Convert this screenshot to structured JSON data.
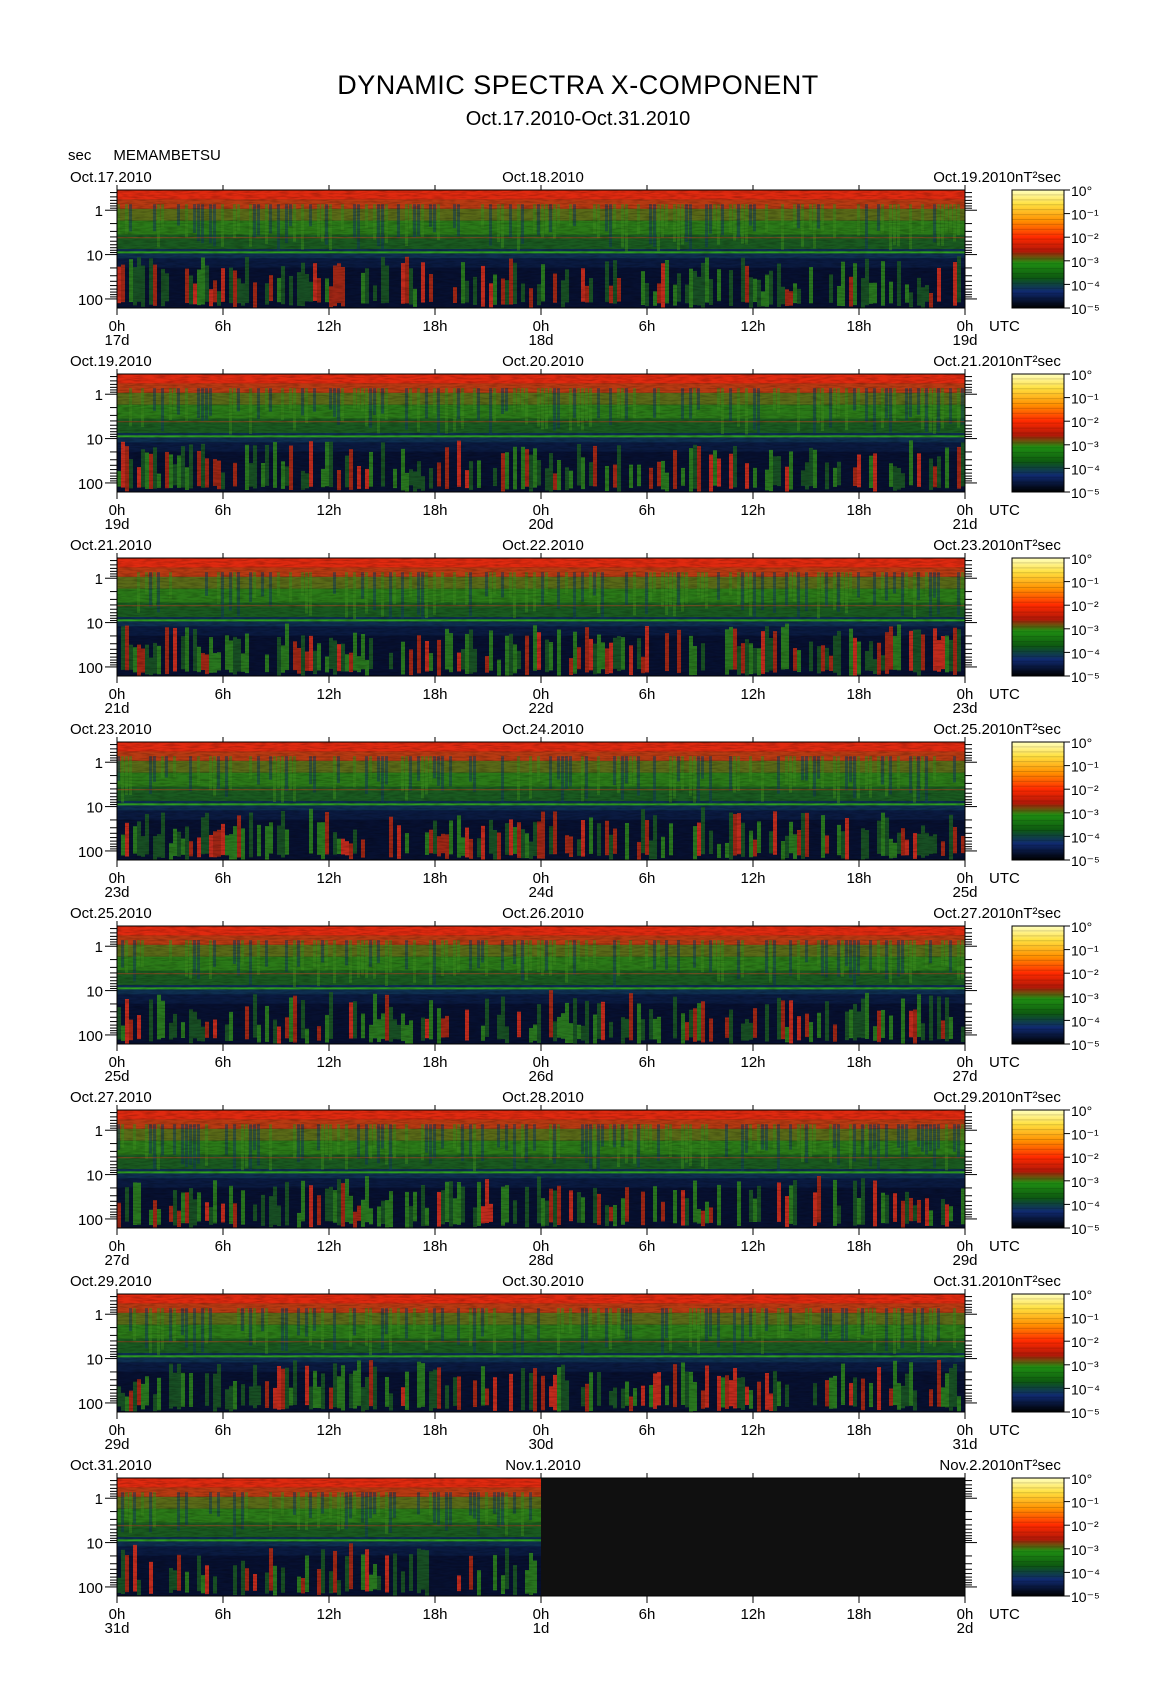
{
  "header": {
    "title": "DYNAMIC SPECTRA X-COMPONENT",
    "subtitle": "Oct.17.2010-Oct.31.2010",
    "unit_label": "sec",
    "station": "MEMAMBETSU"
  },
  "colorbar": {
    "unit": "nT²sec",
    "tick_labels": [
      "10°",
      "10⁻¹",
      "10⁻²",
      "10⁻³",
      "10⁻⁴",
      "10⁻⁵"
    ],
    "colors": [
      "#ffffb0",
      "#ffd000",
      "#ff3000",
      "#c81810",
      "#1e8c14",
      "#0a2a66",
      "#000000"
    ]
  },
  "x_tick_labels": [
    "0h",
    "6h",
    "12h",
    "18h",
    "0h",
    "6h",
    "12h",
    "18h",
    "0h"
  ],
  "x_unit": "UTC",
  "panels": [
    {
      "date_left": "Oct.17.2010",
      "date_mid": "Oct.18.2010",
      "date_right": "Oct.19.2010",
      "day_left": "17d",
      "day_mid": "18d",
      "day_right": "19d"
    },
    {
      "date_left": "Oct.19.2010",
      "date_mid": "Oct.20.2010",
      "date_right": "Oct.21.2010",
      "day_left": "19d",
      "day_mid": "20d",
      "day_right": "21d"
    },
    {
      "date_left": "Oct.21.2010",
      "date_mid": "Oct.22.2010",
      "date_right": "Oct.23.2010",
      "day_left": "21d",
      "day_mid": "22d",
      "day_right": "23d"
    },
    {
      "date_left": "Oct.23.2010",
      "date_mid": "Oct.24.2010",
      "date_right": "Oct.25.2010",
      "day_left": "23d",
      "day_mid": "24d",
      "day_right": "25d"
    },
    {
      "date_left": "Oct.25.2010",
      "date_mid": "Oct.26.2010",
      "date_right": "Oct.27.2010",
      "day_left": "25d",
      "day_mid": "26d",
      "day_right": "27d"
    },
    {
      "date_left": "Oct.27.2010",
      "date_mid": "Oct.28.2010",
      "date_right": "Oct.29.2010",
      "day_left": "27d",
      "day_mid": "28d",
      "day_right": "29d"
    },
    {
      "date_left": "Oct.29.2010",
      "date_mid": "Oct.30.2010",
      "date_right": "Oct.31.2010",
      "day_left": "29d",
      "day_mid": "30d",
      "day_right": "31d"
    },
    {
      "date_left": "Oct.31.2010",
      "date_mid": "Nov.1.2010",
      "date_right": "Nov.2.2010",
      "day_left": "31d",
      "day_mid": "1d",
      "day_right": "2d"
    }
  ],
  "chart_data": {
    "type": "heatmap",
    "title": "DYNAMIC SPECTRA X-COMPONENT",
    "subtitle": "Oct.17.2010-Oct.31.2010",
    "ylabel": "sec",
    "xlabel": "UTC",
    "y_scale": "log",
    "y_tick_labels": [
      "1",
      "10",
      "100"
    ],
    "x_tick_labels": [
      "0h",
      "6h",
      "12h",
      "18h",
      "0h",
      "6h",
      "12h",
      "18h",
      "0h"
    ],
    "colorbar_range": [
      "10^-5",
      "10^0"
    ],
    "colorbar_unit": "nT^2 sec",
    "panel_count": 8,
    "hours_per_panel": 48,
    "last_panel_data_hours": 24
  }
}
